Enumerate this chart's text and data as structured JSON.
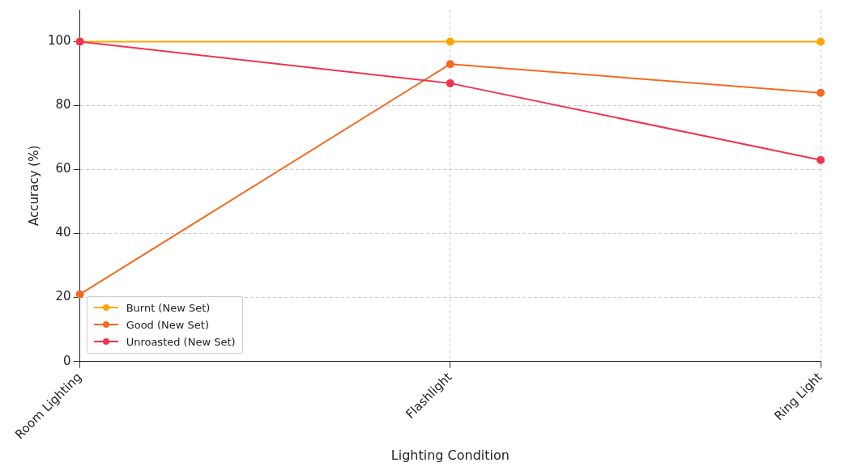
{
  "chart_data": {
    "type": "line",
    "xlabel": "Lighting Condition",
    "ylabel": "Accuracy (%)",
    "categories": [
      "Room Lighting",
      "Flashlight",
      "Ring Light"
    ],
    "series": [
      {
        "name": "Burnt (New Set)",
        "color": "#ffa500",
        "values": [
          100,
          100,
          100
        ]
      },
      {
        "name": "Good (New Set)",
        "color": "#f36b21",
        "values": [
          21,
          93,
          84
        ]
      },
      {
        "name": "Unroasted (New Set)",
        "color": "#f0344f",
        "values": [
          100,
          87,
          63
        ]
      }
    ],
    "ylim": [
      0,
      110
    ],
    "yticks": [
      0,
      20,
      40,
      60,
      80,
      100
    ],
    "grid": true,
    "legend": "bottom left",
    "marker": "circle",
    "line_style": "solid"
  }
}
